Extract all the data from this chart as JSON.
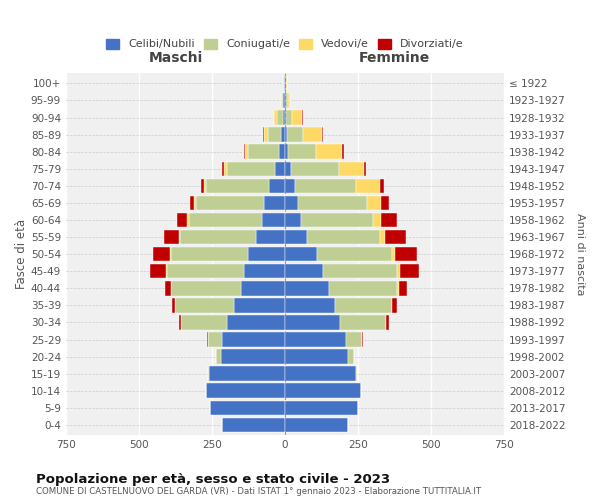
{
  "age_groups": [
    "0-4",
    "5-9",
    "10-14",
    "15-19",
    "20-24",
    "25-29",
    "30-34",
    "35-39",
    "40-44",
    "45-49",
    "50-54",
    "55-59",
    "60-64",
    "65-69",
    "70-74",
    "75-79",
    "80-84",
    "85-89",
    "90-94",
    "95-99",
    "100+"
  ],
  "birth_years": [
    "2018-2022",
    "2013-2017",
    "2008-2012",
    "2003-2007",
    "1998-2002",
    "1993-1997",
    "1988-1992",
    "1983-1987",
    "1978-1982",
    "1973-1977",
    "1968-1972",
    "1963-1967",
    "1958-1962",
    "1953-1957",
    "1948-1952",
    "1943-1947",
    "1938-1942",
    "1933-1937",
    "1928-1932",
    "1923-1927",
    "≤ 1922"
  ],
  "maschi": {
    "celibe": [
      215,
      255,
      270,
      260,
      220,
      215,
      200,
      175,
      150,
      140,
      125,
      100,
      80,
      70,
      55,
      35,
      20,
      12,
      8,
      5,
      2
    ],
    "coniugato": [
      0,
      0,
      1,
      2,
      15,
      50,
      155,
      200,
      240,
      265,
      265,
      260,
      250,
      235,
      215,
      165,
      105,
      45,
      18,
      5,
      2
    ],
    "vedovo": [
      0,
      0,
      0,
      0,
      0,
      0,
      1,
      1,
      1,
      2,
      2,
      3,
      4,
      5,
      8,
      10,
      12,
      15,
      10,
      3,
      1
    ],
    "divorziato": [
      0,
      0,
      0,
      0,
      1,
      2,
      8,
      12,
      20,
      55,
      60,
      50,
      35,
      15,
      8,
      5,
      3,
      2,
      1,
      0,
      0
    ]
  },
  "femmine": {
    "nubile": [
      215,
      250,
      260,
      245,
      215,
      210,
      190,
      170,
      150,
      130,
      110,
      75,
      55,
      45,
      35,
      20,
      12,
      8,
      5,
      3,
      2
    ],
    "coniugata": [
      0,
      0,
      1,
      2,
      20,
      55,
      155,
      195,
      235,
      255,
      255,
      250,
      245,
      235,
      210,
      165,
      95,
      55,
      20,
      6,
      2
    ],
    "vedova": [
      0,
      0,
      0,
      0,
      0,
      0,
      2,
      2,
      5,
      8,
      12,
      18,
      30,
      50,
      80,
      85,
      90,
      65,
      35,
      10,
      3
    ],
    "divorziata": [
      0,
      0,
      0,
      0,
      1,
      2,
      10,
      18,
      28,
      65,
      75,
      70,
      55,
      25,
      15,
      8,
      5,
      2,
      1,
      0,
      0
    ]
  },
  "colors": {
    "celibe": "#4472C4",
    "coniugato": "#BFCE93",
    "vedovo": "#FFD966",
    "divorziato": "#C00000"
  },
  "legend_labels": [
    "Celibi/Nubili",
    "Coniugati/e",
    "Vedovi/e",
    "Divorziati/e"
  ],
  "xlim": 750,
  "title": "Popolazione per età, sesso e stato civile - 2023",
  "subtitle": "COMUNE DI CASTELNUOVO DEL GARDA (VR) - Dati ISTAT 1° gennaio 2023 - Elaborazione TUTTITALIA.IT",
  "ylabel_left": "Fasce di età",
  "ylabel_right": "Anni di nascita",
  "xlabel_maschi": "Maschi",
  "xlabel_femmine": "Femmine",
  "bg_color": "#f0f0f0"
}
